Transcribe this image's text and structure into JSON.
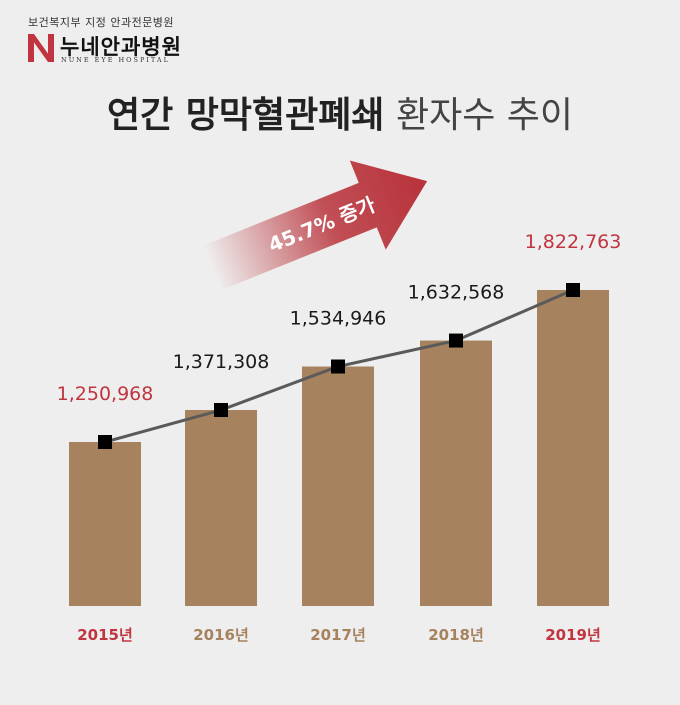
{
  "header": {
    "designation": "보건복지부 지정 안과전문병원",
    "hospital_name": "누네안과병원",
    "hospital_name_en": "NUNE EYE HOSPITAL"
  },
  "title": {
    "bold": "연간 망막혈관폐쇄",
    "light": "환자수 추이"
  },
  "colors": {
    "bar": "#a6825f",
    "highlight_text": "#c0353f",
    "dark_text": "#1a1a1a",
    "background": "#efeeee",
    "arrow": "#b8323a",
    "logo": "#c0353f"
  },
  "arrow_label": "45.7% 증가",
  "chart_data": {
    "type": "bar",
    "categories": [
      "2015년",
      "2016년",
      "2017년",
      "2018년",
      "2019년"
    ],
    "values": [
      1250968,
      1371308,
      1534946,
      1632568,
      1822763
    ],
    "value_labels": [
      "1,250,968",
      "1,371,308",
      "1,534,946",
      "1,632,568",
      "1,822,763"
    ],
    "highlighted": [
      true,
      false,
      false,
      false,
      true
    ],
    "trend_line": true,
    "title": "연간 망막혈관폐쇄 환자수 추이",
    "xlabel": "",
    "ylabel": "",
    "annotation": "45.7% 증가",
    "grid": false
  }
}
